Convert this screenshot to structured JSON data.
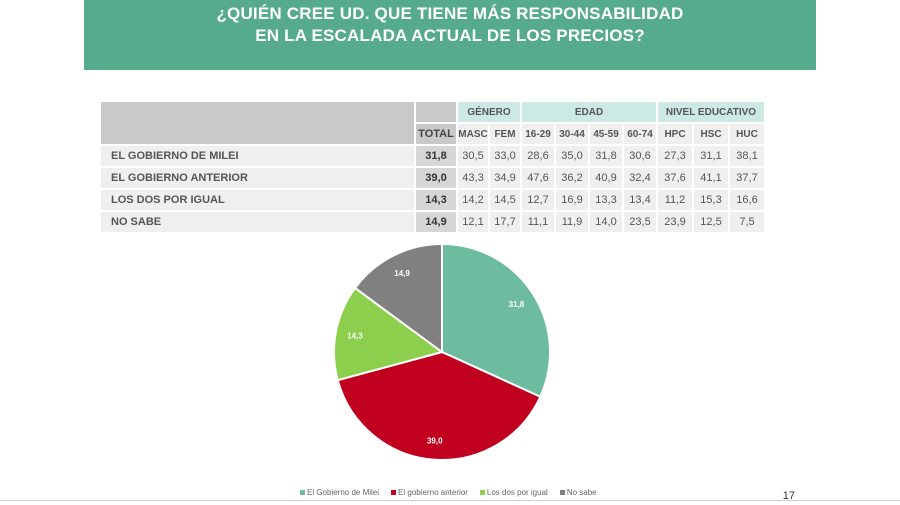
{
  "title": {
    "line1": "¿QUIÉN CREE UD. QUE TIENE MÁS RESPONSABILIDAD",
    "line2": "EN LA ESCALADA ACTUAL DE LOS PRECIOS?"
  },
  "table": {
    "groups": [
      "GÉNERO",
      "EDAD",
      "NIVEL EDUCATIVO"
    ],
    "columns": [
      "TOTAL",
      "MASC",
      "FEM",
      "16-29",
      "30-44",
      "45-59",
      "60-74",
      "HPC",
      "HSC",
      "HUC"
    ],
    "rows": [
      {
        "label": "EL GOBIERNO DE MILEI",
        "values": [
          "31,8",
          "30,5",
          "33,0",
          "28,6",
          "35,0",
          "31,8",
          "30,6",
          "27,3",
          "31,1",
          "38,1"
        ]
      },
      {
        "label": "EL GOBIERNO ANTERIOR",
        "values": [
          "39,0",
          "43,3",
          "34,9",
          "47,6",
          "36,2",
          "40,9",
          "32,4",
          "37,6",
          "41,1",
          "37,7"
        ]
      },
      {
        "label": "LOS DOS POR IGUAL",
        "values": [
          "14,3",
          "14,2",
          "14,5",
          "12,7",
          "16,9",
          "13,3",
          "13,4",
          "11,2",
          "15,3",
          "16,6"
        ]
      },
      {
        "label": "NO SABE",
        "values": [
          "14,9",
          "12,1",
          "17,7",
          "11,1",
          "11,9",
          "14,0",
          "23,5",
          "23,9",
          "12,5",
          "7,5"
        ]
      }
    ]
  },
  "chart_data": {
    "type": "pie",
    "slices": [
      {
        "label": "El Gobierno de Milei",
        "value": 31.8,
        "display": "31,8",
        "color": "#6dbca0"
      },
      {
        "label": "El gobierno anterior",
        "value": 39.0,
        "display": "39,0",
        "color": "#c1001f"
      },
      {
        "label": "Los dos por igual",
        "value": 14.3,
        "display": "14,3",
        "color": "#8ccf4d"
      },
      {
        "label": "No sabe",
        "value": 14.9,
        "display": "14,9",
        "color": "#808080"
      }
    ],
    "legend_position": "bottom"
  },
  "page_number": "17"
}
